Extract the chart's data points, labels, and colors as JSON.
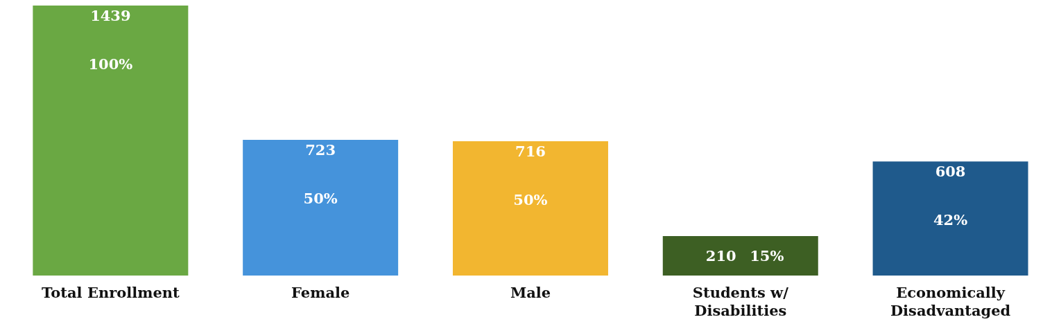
{
  "chart_data": {
    "type": "bar",
    "categories": [
      "Total Enrollment",
      "Female",
      "Male",
      "Students w/ Disabilities",
      "Economically Disadvantaged"
    ],
    "values": [
      1439,
      723,
      716,
      210,
      608
    ],
    "colors": [
      "#6aa843",
      "#4593db",
      "#f2b630",
      "#3d5f23",
      "#1f5a8c"
    ],
    "data_labels": true,
    "annotations": [
      "100%",
      "50%",
      "50%",
      "15%",
      "42%"
    ],
    "grid": false,
    "legend": false
  }
}
